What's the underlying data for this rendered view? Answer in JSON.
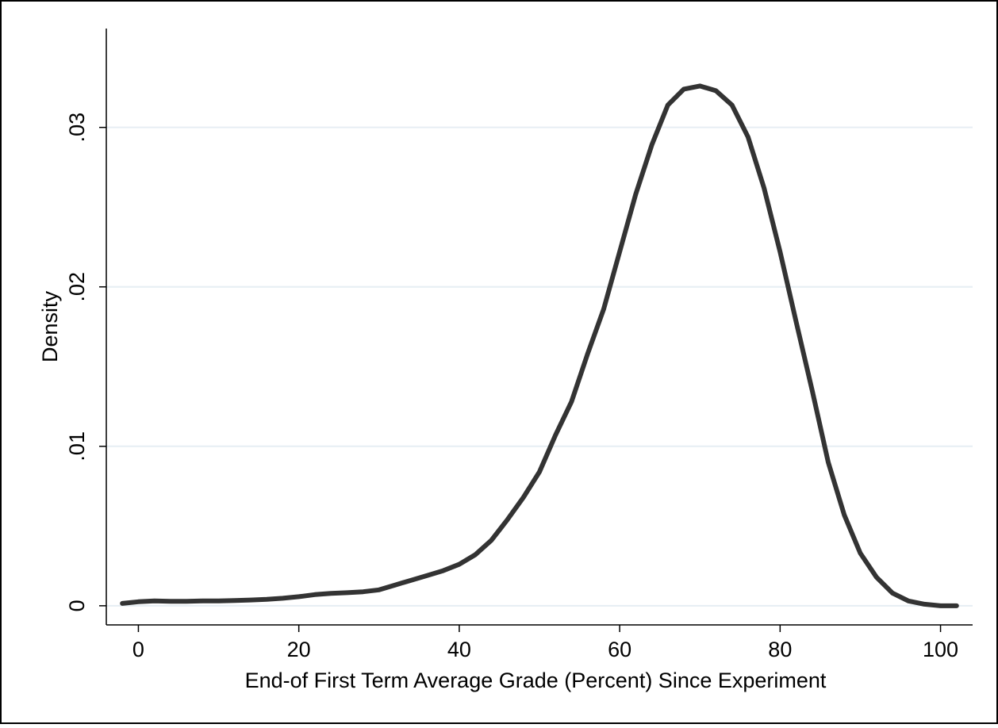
{
  "chart_data": {
    "type": "line",
    "title": "",
    "xlabel": "End-of First Term Average Grade (Percent) Since Experiment",
    "ylabel": "Density",
    "xlim": [
      -4,
      104
    ],
    "ylim": [
      -0.0012,
      0.0362
    ],
    "xticks": [
      0,
      20,
      40,
      60,
      80,
      100
    ],
    "xtick_labels": [
      "0",
      "20",
      "40",
      "60",
      "80",
      "100"
    ],
    "yticks": [
      0,
      0.01,
      0.02,
      0.03
    ],
    "ytick_labels": [
      "0",
      ".01",
      ".02",
      ".03"
    ],
    "grid": true,
    "legend": "none",
    "colors": {
      "line": "#333333",
      "grid": "#e6eef3",
      "axis": "#000000",
      "background": "#ffffff"
    },
    "series": [
      {
        "x": [
          -2,
          0,
          2,
          4,
          6,
          8,
          10,
          12,
          14,
          16,
          18,
          20,
          22,
          24,
          26,
          28,
          30,
          32,
          34,
          36,
          38,
          40,
          42,
          44,
          46,
          48,
          50,
          52,
          54,
          56,
          58,
          60,
          62,
          64,
          66,
          68,
          70,
          72,
          74,
          76,
          78,
          80,
          82,
          84,
          86,
          88,
          90,
          92,
          94,
          96,
          98,
          100,
          102
        ],
        "values": [
          0.00015,
          0.00025,
          0.0003,
          0.00028,
          0.00028,
          0.0003,
          0.0003,
          0.00033,
          0.00036,
          0.0004,
          0.00047,
          0.00057,
          0.0007,
          0.00078,
          0.00082,
          0.00088,
          0.001,
          0.0013,
          0.0016,
          0.0019,
          0.0022,
          0.0026,
          0.0032,
          0.0041,
          0.0054,
          0.0068,
          0.0084,
          0.0107,
          0.0128,
          0.0158,
          0.0186,
          0.0222,
          0.0258,
          0.0289,
          0.0314,
          0.0324,
          0.0326,
          0.0323,
          0.0314,
          0.0294,
          0.0262,
          0.0222,
          0.0178,
          0.0135,
          0.009,
          0.0057,
          0.0033,
          0.0018,
          0.0008,
          0.0003,
          0.0001,
          0.0,
          0.0
        ]
      }
    ]
  }
}
